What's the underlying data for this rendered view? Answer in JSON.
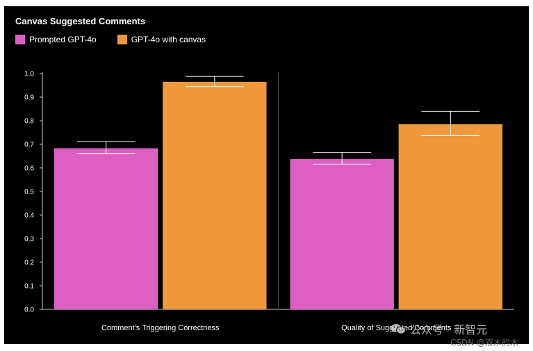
{
  "chart_data": {
    "type": "bar",
    "title": "Canvas Suggested Comments",
    "categories": [
      "Comment's Triggering Correctness",
      "Quality of Suggested Comments"
    ],
    "series": [
      {
        "name": "Prompted GPT-4o",
        "color": "#dd5fc1",
        "values": [
          0.683,
          0.638
        ],
        "error_low": [
          0.66,
          0.615
        ],
        "error_high": [
          0.712,
          0.666
        ]
      },
      {
        "name": "GPT-4o with canvas",
        "color": "#f0993a",
        "values": [
          0.965,
          0.785
        ],
        "error_low": [
          0.945,
          0.737
        ],
        "error_high": [
          0.988,
          0.84
        ]
      }
    ],
    "ylim": [
      0.0,
      1.0
    ],
    "yticks": [
      "0.0",
      "0.1",
      "0.2",
      "0.3",
      "0.4",
      "0.5",
      "0.6",
      "0.7",
      "0.8",
      "0.9",
      "1.0"
    ],
    "xlabel": "",
    "ylabel": "",
    "legend_position": "top-left",
    "grid": false,
    "background": "#000000"
  },
  "watermark": {
    "text": "公众号 · 新智元",
    "icon": "wechat-icon"
  },
  "footer": {
    "credit": "CSDN @双木的木"
  }
}
